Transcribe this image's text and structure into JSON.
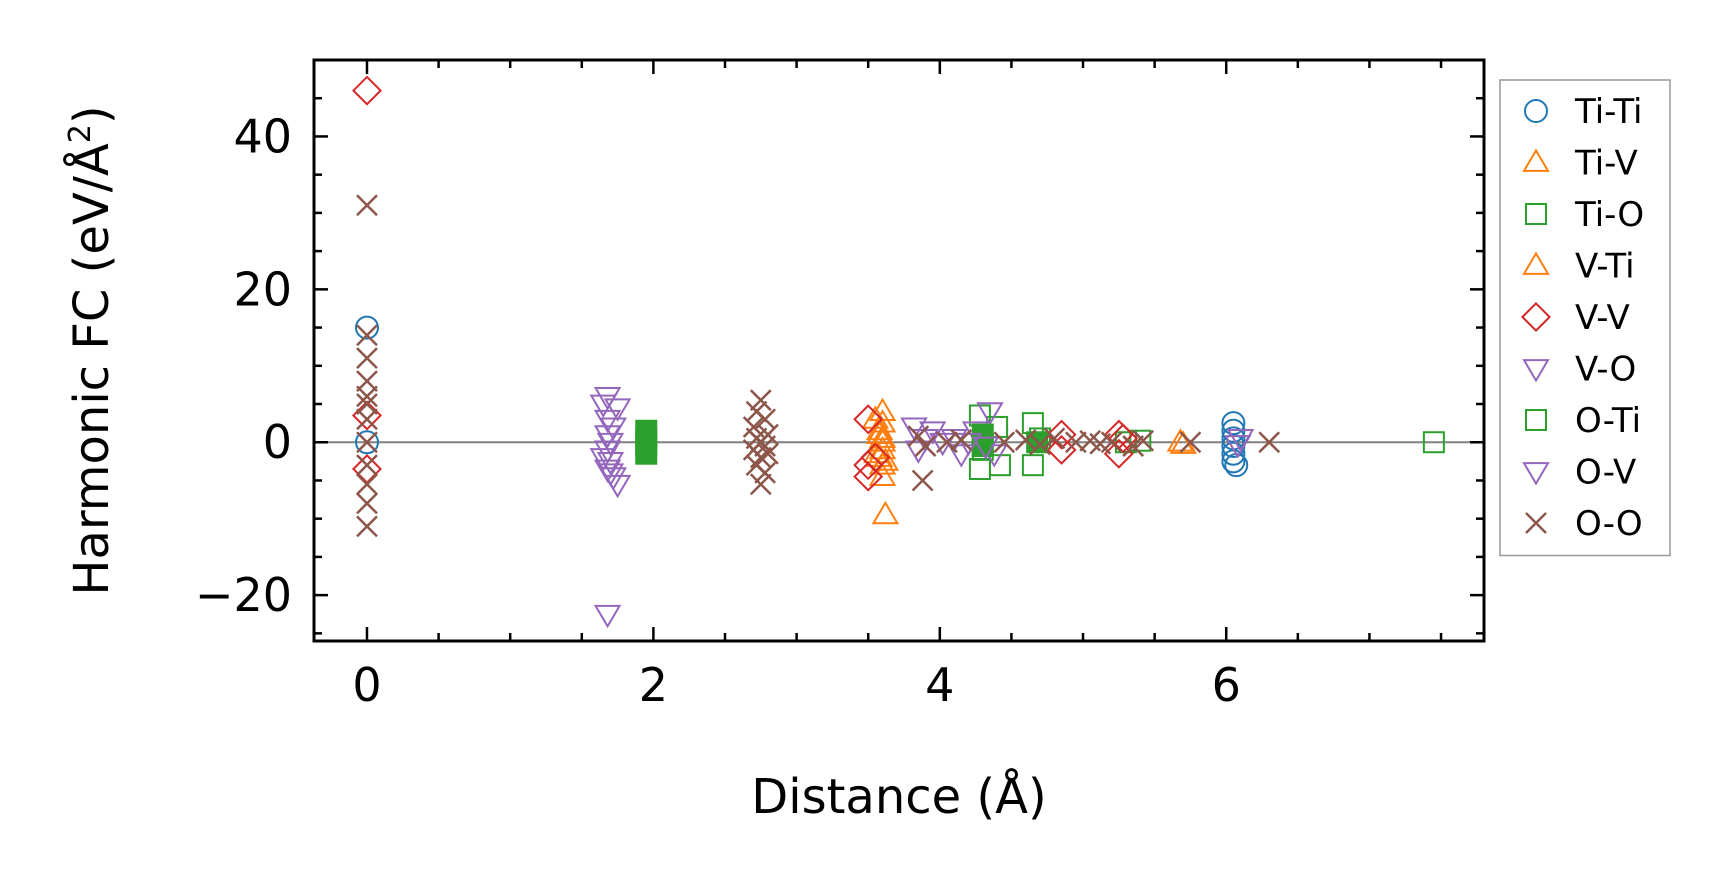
{
  "chart_data": {
    "type": "scatter",
    "title": "",
    "xlabel": "Distance (Å)",
    "ylabel": {
      "main": "Harmonic FC (eV/Å",
      "sup": "2",
      "end": ")"
    },
    "xlim": [
      -0.37,
      7.8
    ],
    "ylim": [
      -26,
      50
    ],
    "xticks": [
      0,
      2,
      4,
      6
    ],
    "xtick_labels": [
      "0",
      "2",
      "4",
      "6"
    ],
    "yticks": [
      -20,
      0,
      20,
      40
    ],
    "ytick_labels": [
      "−20",
      "0",
      "20",
      "40"
    ],
    "grid": false,
    "zero_line": true,
    "legend_position": "right, outside",
    "series": [
      {
        "name": "Ti-Ti",
        "marker": "circle",
        "color": "#1f77b4",
        "filled": false,
        "points": [
          [
            0,
            15
          ],
          [
            0,
            0
          ],
          [
            6.05,
            2.5
          ],
          [
            6.05,
            1.5
          ],
          [
            6.05,
            0.5
          ],
          [
            6.05,
            -0.5
          ],
          [
            6.05,
            -1.5
          ],
          [
            6.05,
            -2.5
          ],
          [
            6.07,
            -3
          ]
        ]
      },
      {
        "name": "Ti-V",
        "marker": "triangle-up",
        "color": "#ff7f0e",
        "filled": false,
        "points": [
          [
            3.6,
            4
          ],
          [
            3.6,
            2.5
          ],
          [
            3.58,
            1
          ],
          [
            3.6,
            0
          ],
          [
            3.6,
            -1
          ],
          [
            3.58,
            -2
          ],
          [
            3.6,
            -3
          ],
          [
            3.6,
            -4.5
          ],
          [
            3.62,
            -9.5
          ],
          [
            5.7,
            -0.3
          ]
        ]
      },
      {
        "name": "Ti-O",
        "marker": "square",
        "color": "#2ca02c",
        "filled": false,
        "points": [
          [
            4.28,
            3.5
          ],
          [
            4.4,
            2
          ],
          [
            4.3,
            -1
          ],
          [
            4.28,
            -3.5
          ],
          [
            4.42,
            -3
          ],
          [
            4.65,
            2.5
          ],
          [
            4.65,
            -3
          ],
          [
            4.7,
            0.5
          ],
          [
            5.3,
            0
          ],
          [
            5.4,
            0.2
          ],
          [
            7.45,
            0
          ]
        ]
      },
      {
        "name": "V-Ti",
        "marker": "triangle-up",
        "color": "#ff7f0e",
        "filled": false,
        "points": [
          [
            3.55,
            3
          ],
          [
            3.58,
            1.5
          ],
          [
            3.56,
            -1.5
          ],
          [
            3.6,
            0.5
          ],
          [
            3.62,
            -2.5
          ],
          [
            5.68,
            0
          ]
        ]
      },
      {
        "name": "V-V",
        "marker": "diamond",
        "color": "#d62728",
        "filled": false,
        "points": [
          [
            0,
            46
          ],
          [
            0,
            3.5
          ],
          [
            0,
            -3.5
          ],
          [
            3.5,
            3
          ],
          [
            3.5,
            -3
          ],
          [
            3.5,
            -4.5
          ],
          [
            3.55,
            -2
          ],
          [
            4.85,
            1
          ],
          [
            4.85,
            -1
          ],
          [
            5.25,
            1
          ],
          [
            5.25,
            -1.5
          ],
          [
            5.28,
            0.5
          ]
        ]
      },
      {
        "name": "V-O",
        "marker": "triangle-down",
        "color": "#9467bd",
        "filled": false,
        "points": [
          [
            1.68,
            6
          ],
          [
            1.75,
            4.5
          ],
          [
            1.68,
            3
          ],
          [
            1.68,
            1
          ],
          [
            1.7,
            0
          ],
          [
            1.68,
            -1
          ],
          [
            1.7,
            -2.5
          ],
          [
            1.68,
            -3.5
          ],
          [
            1.72,
            -4.5
          ],
          [
            1.75,
            -5.5
          ],
          [
            1.68,
            -22.5
          ],
          [
            3.82,
            2
          ],
          [
            3.95,
            1.5
          ],
          [
            4.02,
            0
          ],
          [
            4.15,
            -1.5
          ],
          [
            4.25,
            1.5
          ],
          [
            4.35,
            4
          ],
          [
            4.38,
            -1.5
          ],
          [
            6.1,
            0.5
          ]
        ]
      },
      {
        "name": "O-Ti",
        "marker": "square",
        "color": "#2ca02c",
        "filled": true,
        "points": [
          [
            1.95,
            1.5
          ],
          [
            1.95,
            0.5
          ],
          [
            1.95,
            -0.5
          ],
          [
            1.95,
            -1.5
          ],
          [
            4.3,
            1
          ],
          [
            4.3,
            -0.5
          ],
          [
            4.68,
            0
          ]
        ]
      },
      {
        "name": "O-V",
        "marker": "triangle-down",
        "color": "#9467bd",
        "filled": false,
        "points": [
          [
            1.65,
            5
          ],
          [
            1.72,
            2
          ],
          [
            1.65,
            -2
          ],
          [
            1.7,
            -4
          ],
          [
            3.85,
            -1
          ],
          [
            3.9,
            0.5
          ],
          [
            4.1,
            0.5
          ],
          [
            4.2,
            0
          ],
          [
            4.32,
            -0.5
          ],
          [
            6.08,
            -0.3
          ]
        ]
      },
      {
        "name": "O-O",
        "marker": "x",
        "color": "#8c564b",
        "filled": false,
        "points": [
          [
            0,
            31
          ],
          [
            0,
            14
          ],
          [
            0,
            11
          ],
          [
            0,
            8
          ],
          [
            0,
            6
          ],
          [
            0,
            5
          ],
          [
            0,
            3
          ],
          [
            0,
            0
          ],
          [
            0,
            -3
          ],
          [
            0,
            -5.5
          ],
          [
            0,
            -8
          ],
          [
            0,
            -11
          ],
          [
            2.75,
            5.5
          ],
          [
            2.72,
            4
          ],
          [
            2.78,
            3
          ],
          [
            2.7,
            2
          ],
          [
            2.8,
            1
          ],
          [
            2.72,
            0.5
          ],
          [
            2.75,
            0
          ],
          [
            2.78,
            -0.5
          ],
          [
            2.7,
            -1
          ],
          [
            2.8,
            -1.5
          ],
          [
            2.75,
            -2
          ],
          [
            2.72,
            -3
          ],
          [
            2.78,
            -4
          ],
          [
            2.75,
            -5.5
          ],
          [
            3.85,
            0.8
          ],
          [
            3.9,
            -0.5
          ],
          [
            3.88,
            -5
          ],
          [
            4.05,
            0
          ],
          [
            4.15,
            0.3
          ],
          [
            4.45,
            0
          ],
          [
            4.6,
            0.3
          ],
          [
            4.7,
            -0.3
          ],
          [
            4.8,
            0.5
          ],
          [
            4.95,
            0
          ],
          [
            5.05,
            0.2
          ],
          [
            5.12,
            -0.2
          ],
          [
            5.2,
            0
          ],
          [
            5.35,
            -0.5
          ],
          [
            5.42,
            0.2
          ],
          [
            5.75,
            0
          ],
          [
            6.3,
            0
          ]
        ]
      }
    ]
  }
}
